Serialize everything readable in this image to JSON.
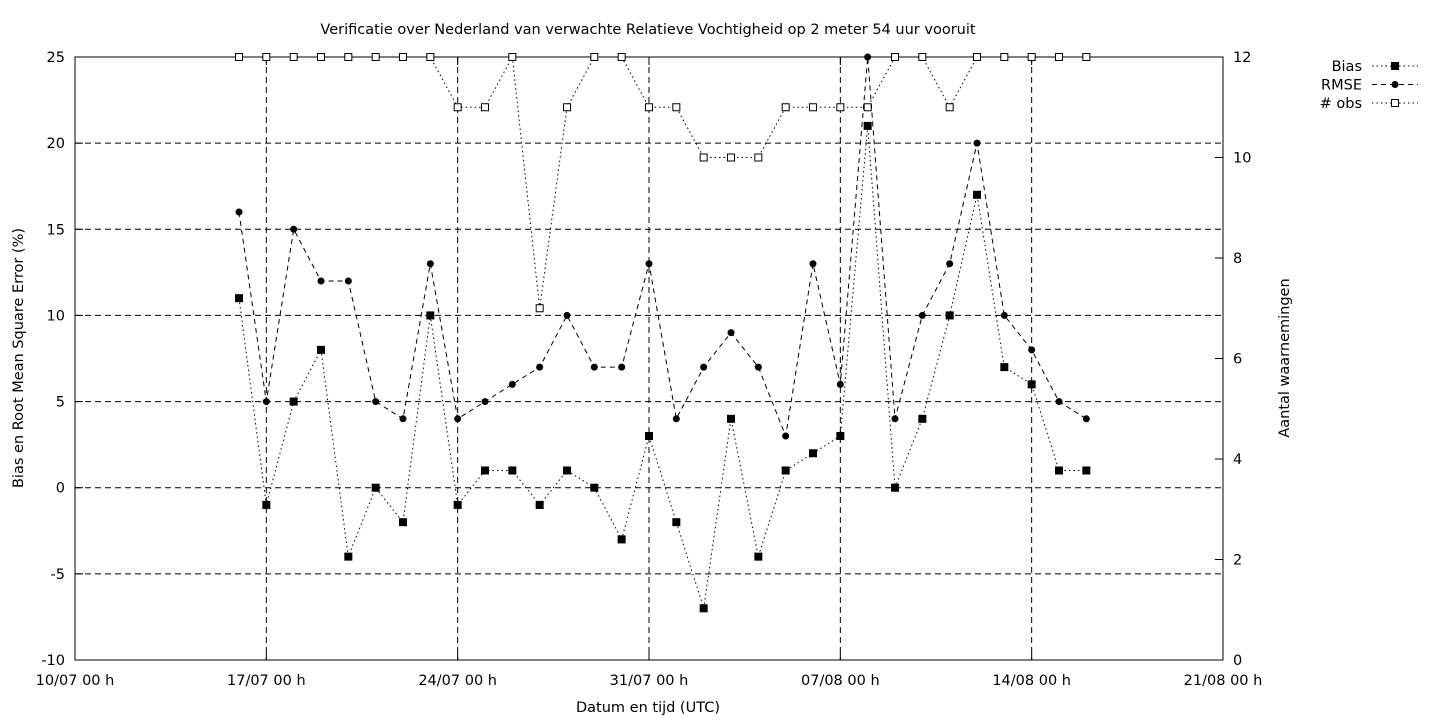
{
  "chart_data": {
    "type": "line",
    "title": "Verificatie over Nederland van verwachte Relatieve Vochtigheid op 2 meter 54 uur vooruit",
    "xlabel": "Datum en tijd (UTC)",
    "ylabel": "Bias en Root Mean Square Error (%)",
    "y2label": "Aantal waarnemingen",
    "xlim": [
      "2023-07-10",
      "2023-08-21"
    ],
    "xticks": [
      {
        "date": "2023-07-10",
        "label": "10/07 00 h"
      },
      {
        "date": "2023-07-17",
        "label": "17/07 00 h"
      },
      {
        "date": "2023-07-24",
        "label": "24/07 00 h"
      },
      {
        "date": "2023-07-31",
        "label": "31/07 00 h"
      },
      {
        "date": "2023-08-07",
        "label": "07/08 00 h"
      },
      {
        "date": "2023-08-14",
        "label": "14/08 00 h"
      },
      {
        "date": "2023-08-21",
        "label": "21/08 00 h"
      }
    ],
    "ylim": [
      -10,
      25
    ],
    "yticks": [
      -10,
      -5,
      0,
      5,
      10,
      15,
      20,
      25
    ],
    "y2lim": [
      0,
      12
    ],
    "y2ticks": [
      0,
      2,
      4,
      6,
      8,
      10,
      12
    ],
    "grid": true,
    "legend_position": "top-right, outside plot",
    "x": [
      "2023-07-16",
      "2023-07-17",
      "2023-07-18",
      "2023-07-19",
      "2023-07-20",
      "2023-07-21",
      "2023-07-22",
      "2023-07-23",
      "2023-07-24",
      "2023-07-25",
      "2023-07-26",
      "2023-07-27",
      "2023-07-28",
      "2023-07-29",
      "2023-07-30",
      "2023-07-31",
      "2023-08-01",
      "2023-08-02",
      "2023-08-03",
      "2023-08-04",
      "2023-08-05",
      "2023-08-06",
      "2023-08-07",
      "2023-08-08",
      "2023-08-09",
      "2023-08-10",
      "2023-08-11",
      "2023-08-12",
      "2023-08-13",
      "2023-08-14",
      "2023-08-15",
      "2023-08-16"
    ],
    "series": [
      {
        "name": "Bias",
        "axis": "y1",
        "marker": "filled-square",
        "dash": "dotted",
        "values": [
          11,
          -1,
          5,
          8,
          -4,
          0,
          -2,
          10,
          -1,
          1,
          1,
          -1,
          1,
          0,
          -3,
          3,
          -2,
          -7,
          4,
          -4,
          1,
          2,
          3,
          21,
          0,
          4,
          10,
          17,
          7,
          6,
          1,
          1
        ]
      },
      {
        "name": "RMSE",
        "axis": "y1",
        "marker": "filled-circle",
        "dash": "dashed",
        "values": [
          16,
          5,
          15,
          12,
          12,
          5,
          4,
          13,
          4,
          5,
          6,
          7,
          10,
          7,
          7,
          13,
          4,
          7,
          9,
          7,
          3,
          13,
          6,
          25,
          4,
          10,
          13,
          20,
          10,
          8,
          5,
          4
        ]
      },
      {
        "name": "# obs",
        "axis": "y2",
        "marker": "open-square",
        "dash": "dotted",
        "values": [
          12,
          12,
          12,
          12,
          12,
          12,
          12,
          12,
          11,
          11,
          12,
          7,
          11,
          12,
          12,
          11,
          11,
          10,
          10,
          10,
          11,
          11,
          11,
          11,
          12,
          12,
          11,
          12,
          12,
          12,
          12,
          12
        ]
      }
    ]
  }
}
